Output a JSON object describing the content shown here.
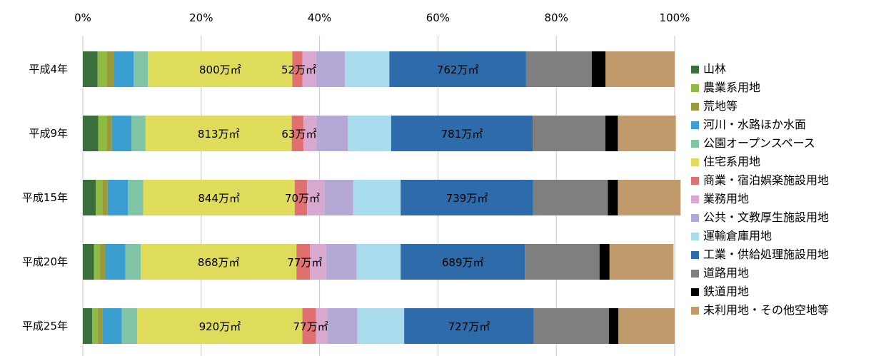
{
  "chart_data": {
    "type": "bar",
    "orientation": "horizontal",
    "stacked": "percent",
    "grid": true,
    "legend_position": "right",
    "xlim": [
      0,
      100
    ],
    "x_ticks": [
      "0%",
      "20%",
      "40%",
      "60%",
      "80%",
      "100%"
    ],
    "categories": [
      "平成4年",
      "平成9年",
      "平成15年",
      "平成20年",
      "平成25年"
    ],
    "series": [
      {
        "name": "山林",
        "color": "#3a6e3a",
        "values": [
          2.5,
          2.6,
          2.2,
          1.9,
          1.6
        ]
      },
      {
        "name": "農業系用地",
        "color": "#8dbb43",
        "values": [
          1.6,
          1.4,
          1.1,
          1.0,
          0.9
        ]
      },
      {
        "name": "荒地等",
        "color": "#9a9a3a",
        "values": [
          1.1,
          0.9,
          0.9,
          0.9,
          0.8
        ]
      },
      {
        "name": "河川・水路ほか水面",
        "color": "#3a9fd0",
        "values": [
          3.4,
          3.3,
          3.4,
          3.4,
          3.3
        ]
      },
      {
        "name": "公園オープンスペース",
        "color": "#82c4a6",
        "values": [
          2.4,
          2.4,
          2.6,
          2.6,
          2.6
        ]
      },
      {
        "name": "住宅系用地",
        "color": "#dfdc5b",
        "values": [
          24.4,
          24.7,
          25.6,
          26.3,
          27.9
        ]
      },
      {
        "name": "商業・宿泊娯楽施設用地",
        "color": "#e17070",
        "values": [
          1.7,
          2.0,
          2.1,
          2.3,
          2.3
        ]
      },
      {
        "name": "業務用地",
        "color": "#d8a8d0",
        "values": [
          2.3,
          2.2,
          2.9,
          2.7,
          1.9
        ]
      },
      {
        "name": "公共・文教厚生施設用地",
        "color": "#b4a9d4",
        "values": [
          4.9,
          5.3,
          4.9,
          5.2,
          5.1
        ]
      },
      {
        "name": "運輸倉庫用地",
        "color": "#a8dcec",
        "values": [
          7.5,
          7.3,
          8.0,
          7.4,
          7.9
        ]
      },
      {
        "name": "工業・供給処理施設用地",
        "color": "#2e6bab",
        "values": [
          23.1,
          23.9,
          22.4,
          21.0,
          21.9
        ]
      },
      {
        "name": "道路用地",
        "color": "#7f7f7f",
        "values": [
          11.1,
          12.3,
          12.6,
          12.6,
          12.7
        ]
      },
      {
        "name": "鉄道用地",
        "color": "#000000",
        "values": [
          2.3,
          2.1,
          1.7,
          1.7,
          1.6
        ]
      },
      {
        "name": "未利用地・その他空地等",
        "color": "#c09a6a",
        "values": [
          11.7,
          9.8,
          10.6,
          10.8,
          9.5
        ]
      }
    ],
    "data_labels": [
      {
        "series": "住宅系用地",
        "texts": [
          "800万㎡",
          "813万㎡",
          "844万㎡",
          "868万㎡",
          "920万㎡"
        ]
      },
      {
        "series": "商業・宿泊娯楽施設用地",
        "texts": [
          "52万㎡",
          "63万㎡",
          "70万㎡",
          "77万㎡",
          "77万㎡"
        ]
      },
      {
        "series": "工業・供給処理施設用地",
        "texts": [
          "762万㎡",
          "781万㎡",
          "739万㎡",
          "689万㎡",
          "727万㎡"
        ]
      }
    ]
  }
}
